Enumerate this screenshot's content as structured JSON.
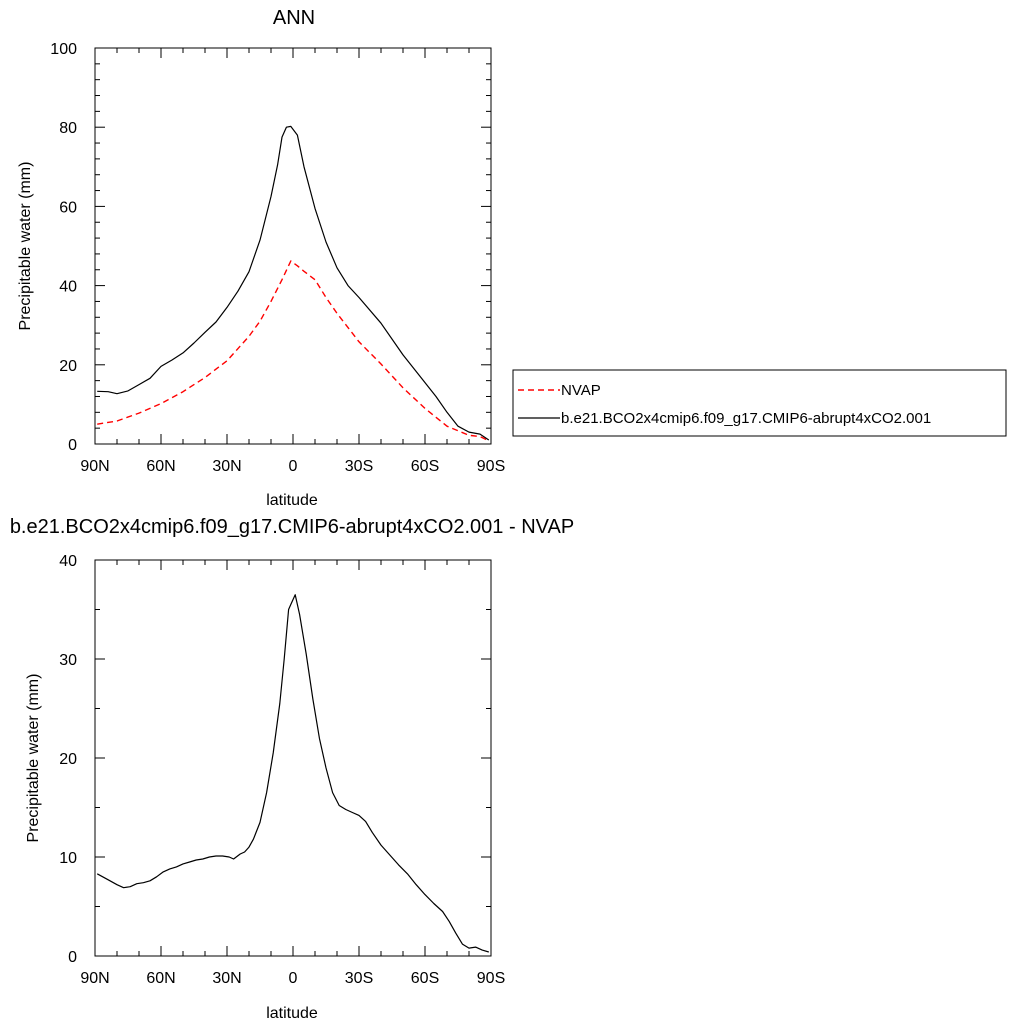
{
  "chart_data": [
    {
      "type": "line",
      "title": "ANN",
      "xlabel": "latitude",
      "ylabel": "Precipitable water (mm)",
      "xlim": [
        90,
        -90
      ],
      "ylim": [
        0,
        100
      ],
      "xtick_values": [
        90,
        60,
        30,
        0,
        -30,
        -60,
        -90
      ],
      "xtick_labels": [
        "90N",
        "60N",
        "30N",
        "0",
        "30S",
        "60S",
        "90S"
      ],
      "yticks": [
        0,
        20,
        40,
        60,
        80,
        100
      ],
      "grid": false,
      "legend": {
        "placement": "right-outside"
      },
      "series": [
        {
          "name": "NVAP",
          "color": "#ff0000",
          "dash": "dashed",
          "x": [
            89,
            80,
            70,
            60,
            50,
            40,
            30,
            20,
            15,
            10,
            5,
            1,
            -2,
            -5,
            -10,
            -15,
            -20,
            -30,
            -40,
            -50,
            -60,
            -70,
            -80,
            -85,
            -89
          ],
          "y": [
            5,
            5.8,
            7.8,
            10.2,
            13.2,
            16.8,
            21,
            27.2,
            31,
            36,
            41.5,
            46.2,
            45,
            43.6,
            41.5,
            37,
            33,
            25.8,
            20.2,
            14.2,
            9,
            4.5,
            2.2,
            1.9,
            0.8
          ]
        },
        {
          "name": "b.e21.BCO2x4cmip6.f09_g17.CMIP6-abrupt4xCO2.001",
          "color": "#000000",
          "dash": "solid",
          "x": [
            89,
            84,
            80,
            75,
            70,
            65,
            60,
            55,
            50,
            45,
            40,
            35,
            30,
            25,
            20,
            15,
            10,
            7,
            5,
            3,
            1,
            -2,
            -5,
            -10,
            -15,
            -20,
            -25,
            -30,
            -40,
            -50,
            -60,
            -65,
            -70,
            -75,
            -80,
            -85,
            -89
          ],
          "y": [
            13.3,
            13.2,
            12.7,
            13.4,
            15,
            16.6,
            19.6,
            21.2,
            23,
            25.5,
            28.2,
            30.8,
            34.5,
            38.6,
            43.5,
            51.5,
            62.5,
            70.5,
            77.5,
            80,
            80.2,
            78,
            70,
            59.5,
            51,
            44.5,
            40,
            37,
            30.5,
            22.5,
            15.5,
            12,
            8,
            4.5,
            3,
            2.5,
            1
          ]
        }
      ]
    },
    {
      "type": "line",
      "title": "b.e21.BCO2x4cmip6.f09_g17.CMIP6-abrupt4xCO2.001 - NVAP",
      "xlabel": "latitude",
      "ylabel": "Precipitable water (mm)",
      "xlim": [
        90,
        -90
      ],
      "ylim": [
        0,
        40
      ],
      "xtick_values": [
        90,
        60,
        30,
        0,
        -30,
        -60,
        -90
      ],
      "xtick_labels": [
        "90N",
        "60N",
        "30N",
        "0",
        "30S",
        "60S",
        "90S"
      ],
      "yticks": [
        0,
        10,
        20,
        30,
        40
      ],
      "grid": false,
      "series": [
        {
          "color": "#000000",
          "dash": "solid",
          "x": [
            89,
            84,
            80,
            77,
            74,
            71,
            68,
            65,
            62,
            59,
            56,
            53,
            50,
            47,
            44,
            41,
            38,
            35,
            32,
            29,
            27,
            24,
            22,
            20,
            18,
            15,
            12,
            9,
            6,
            4,
            2,
            1,
            -1,
            -3,
            -6,
            -9,
            -12,
            -15,
            -18,
            -21,
            -24,
            -27,
            -30,
            -33,
            -36,
            -40,
            -44,
            -48,
            -52,
            -56,
            -60,
            -64,
            -68,
            -71,
            -74,
            -77,
            -80,
            -83,
            -86,
            -89
          ],
          "y": [
            8.3,
            7.7,
            7.2,
            6.9,
            7,
            7.3,
            7.4,
            7.6,
            8,
            8.5,
            8.8,
            9,
            9.3,
            9.5,
            9.7,
            9.8,
            10,
            10.1,
            10.1,
            10,
            9.8,
            10.3,
            10.5,
            11,
            11.8,
            13.5,
            16.5,
            20.5,
            25.5,
            30,
            35,
            35.5,
            36.5,
            34.5,
            30.5,
            26,
            22,
            19,
            16.5,
            15.2,
            14.8,
            14.5,
            14.2,
            13.6,
            12.5,
            11.2,
            10.2,
            9.2,
            8.3,
            7.2,
            6.2,
            5.3,
            4.5,
            3.5,
            2.3,
            1.2,
            0.8,
            0.9,
            0.6,
            0.4
          ]
        }
      ]
    }
  ]
}
